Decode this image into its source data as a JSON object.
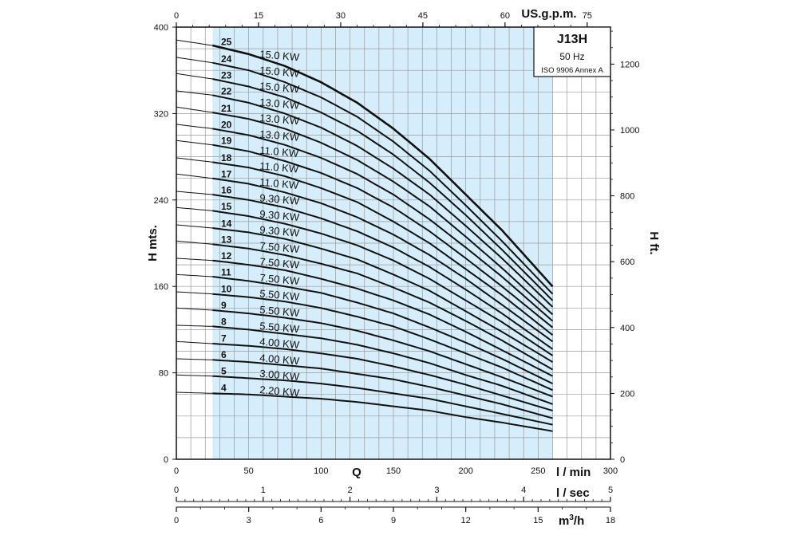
{
  "chart_data": {
    "type": "line",
    "model": "J13H",
    "frequency": "50 Hz",
    "standard": "ISO 9906 Annex A",
    "x_label": "Q",
    "x_unit_lmin": "l / min",
    "x_unit_lsec": "l / sec",
    "x_unit_m3h": "m3/h",
    "x_unit_gpm": "US.g.p.m.",
    "y_label": "H mts.",
    "y2_label": "H ft.",
    "xlim": [
      0,
      300
    ],
    "ylim": [
      0,
      400
    ],
    "x_ticks_lmin": [
      "0",
      "50",
      "100",
      "150",
      "200",
      "250",
      "300"
    ],
    "x_ticks_lsec": [
      "0",
      "1",
      "2",
      "3",
      "4",
      "5"
    ],
    "x_ticks_m3h": [
      "0",
      "3",
      "6",
      "9",
      "12",
      "15",
      "18"
    ],
    "x_ticks_gpm": [
      "0",
      "15",
      "30",
      "45",
      "60",
      "75"
    ],
    "y_ticks_m": [
      "0",
      "80",
      "160",
      "240",
      "320",
      "400"
    ],
    "y_ticks_ft": [
      "0",
      "200",
      "400",
      "600",
      "800",
      "1000",
      "1200"
    ],
    "operating_range_lmin": [
      25,
      260
    ],
    "x": [
      0,
      25,
      50,
      75,
      100,
      125,
      150,
      175,
      200,
      225,
      260
    ],
    "series": [
      {
        "stages": "25",
        "power": "15.0 KW",
        "values": [
          388,
          383,
          375,
          364,
          349,
          330,
          306,
          278,
          245,
          212,
          160
        ]
      },
      {
        "stages": "24",
        "power": "15.0 KW",
        "values": [
          372,
          367,
          360,
          349,
          335,
          317,
          294,
          267,
          235,
          202,
          153
        ]
      },
      {
        "stages": "23",
        "power": "15.0 KW",
        "values": [
          357,
          352,
          345,
          335,
          321,
          304,
          282,
          256,
          226,
          194,
          147
        ]
      },
      {
        "stages": "22",
        "power": "13.0 KW",
        "values": [
          341,
          337,
          330,
          320,
          307,
          290,
          269,
          245,
          216,
          186,
          141
        ]
      },
      {
        "stages": "21",
        "power": "13.0 KW",
        "values": [
          326,
          321,
          315,
          306,
          293,
          277,
          257,
          234,
          206,
          177,
          134
        ]
      },
      {
        "stages": "20",
        "power": "13.0 KW",
        "values": [
          310,
          306,
          300,
          291,
          279,
          264,
          245,
          222,
          196,
          169,
          128
        ]
      },
      {
        "stages": "19",
        "power": "11.0 KW",
        "values": [
          295,
          291,
          285,
          276,
          265,
          251,
          233,
          211,
          186,
          160,
          122
        ]
      },
      {
        "stages": "18",
        "power": "11.0 KW",
        "values": [
          279,
          275,
          270,
          262,
          251,
          238,
          220,
          200,
          176,
          152,
          115
        ]
      },
      {
        "stages": "17",
        "power": "11.0 KW",
        "values": [
          264,
          260,
          255,
          247,
          237,
          224,
          208,
          189,
          167,
          143,
          109
        ]
      },
      {
        "stages": "16",
        "power": "9.30 KW",
        "values": [
          248,
          245,
          240,
          233,
          223,
          211,
          196,
          178,
          157,
          135,
          102
        ]
      },
      {
        "stages": "15",
        "power": "9.30 KW",
        "values": [
          233,
          230,
          225,
          218,
          209,
          198,
          184,
          167,
          147,
          127,
          96
        ]
      },
      {
        "stages": "14",
        "power": "9.30 KW",
        "values": [
          217,
          214,
          210,
          204,
          195,
          185,
          171,
          156,
          137,
          118,
          90
        ]
      },
      {
        "stages": "13",
        "power": "7.50 KW",
        "values": [
          202,
          199,
          195,
          189,
          181,
          172,
          159,
          145,
          128,
          110,
          83
        ]
      },
      {
        "stages": "12",
        "power": "7.50 KW",
        "values": [
          186,
          184,
          180,
          175,
          167,
          158,
          147,
          134,
          118,
          101,
          77
        ]
      },
      {
        "stages": "11",
        "power": "7.50 KW",
        "values": [
          171,
          169,
          165,
          160,
          154,
          145,
          135,
          122,
          108,
          93,
          70
        ]
      },
      {
        "stages": "10",
        "power": "5.50 KW",
        "values": [
          155,
          153,
          150,
          146,
          140,
          132,
          123,
          111,
          98,
          85,
          64
        ]
      },
      {
        "stages": "9",
        "power": "5.50 KW",
        "values": [
          140,
          138,
          135,
          131,
          126,
          119,
          110,
          100,
          88,
          76,
          58
        ]
      },
      {
        "stages": "8",
        "power": "5.50 KW",
        "values": [
          124,
          123,
          120,
          116,
          112,
          106,
          98,
          89,
          78,
          68,
          51
        ]
      },
      {
        "stages": "7",
        "power": "4.00 KW",
        "values": [
          109,
          107,
          105,
          102,
          98,
          93,
          86,
          78,
          69,
          59,
          45
        ]
      },
      {
        "stages": "6",
        "power": "4.00 KW",
        "values": [
          93,
          92,
          90,
          87,
          84,
          79,
          74,
          67,
          59,
          51,
          38
        ]
      },
      {
        "stages": "5",
        "power": "3.00 KW",
        "values": [
          78,
          77,
          75,
          73,
          70,
          66,
          61,
          56,
          49,
          42,
          32
        ]
      },
      {
        "stages": "4",
        "power": "2.20 KW",
        "values": [
          62,
          61,
          60,
          58,
          56,
          53,
          49,
          45,
          39,
          34,
          26
        ]
      }
    ],
    "colors": {
      "operating_fill": "#d6eefb",
      "curve": "#111111",
      "grid": "#9a9a9a",
      "axis": "#111111"
    },
    "grid": true
  }
}
